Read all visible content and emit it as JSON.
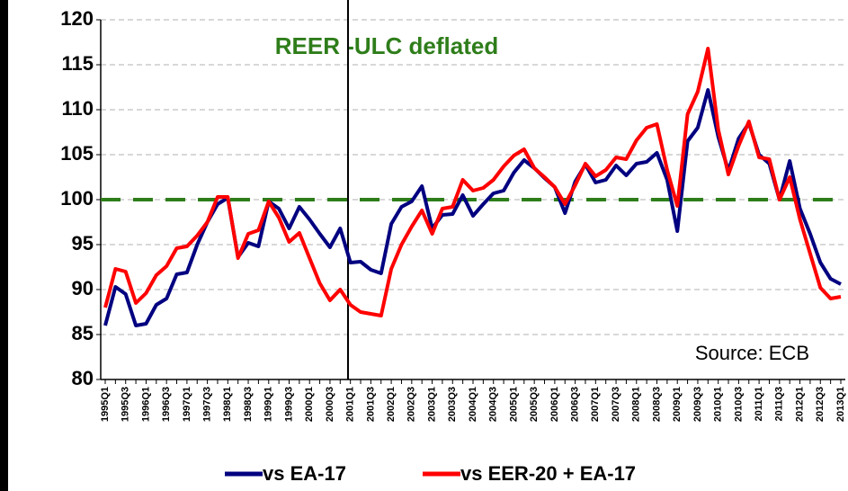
{
  "chart_data": {
    "type": "line",
    "title": "REER -ULC deflated",
    "annotation": "Source: ECB",
    "categories": [
      "1995Q1",
      null,
      "1995Q3",
      null,
      "1996Q1",
      null,
      "1996Q3",
      null,
      "1997Q1",
      null,
      "1997Q3",
      null,
      "1998Q1",
      null,
      "1998Q3",
      null,
      "1999Q1",
      null,
      "1999Q3",
      null,
      "2000Q1",
      null,
      "2000Q3",
      null,
      "2001Q1",
      null,
      "2001Q3",
      null,
      "2002Q1",
      null,
      "2002Q3",
      null,
      "2003Q1",
      null,
      "2003Q3",
      null,
      "2004Q1",
      null,
      "2004Q3",
      null,
      "2005Q1",
      null,
      "2005Q3",
      null,
      "2006Q1",
      null,
      "2006Q3",
      null,
      "2007Q1",
      null,
      "2007Q3",
      null,
      "2008Q1",
      null,
      "2008Q3",
      null,
      "2009Q1",
      null,
      "2009Q3",
      null,
      "2010Q1",
      null,
      "2010Q3",
      null,
      "2011Q1",
      null,
      "2011Q3",
      null,
      "2012Q1",
      null,
      "2012Q3",
      null,
      "2013Q1"
    ],
    "series": [
      {
        "name": "vs EA-17",
        "color": "#000080",
        "values": [
          86,
          90.3,
          89.5,
          86,
          86.2,
          88.3,
          89,
          91.7,
          91.9,
          95,
          97.5,
          99.5,
          100.2,
          93.6,
          95.2,
          94.8,
          99.8,
          99,
          96.8,
          99.2,
          97.8,
          96.2,
          94.7,
          96.8,
          93,
          93.1,
          92.2,
          91.8,
          97.3,
          99.2,
          99.8,
          101.5,
          96.8,
          98.3,
          98.4,
          100.5,
          98.2,
          99.5,
          100.7,
          101,
          103,
          104.4,
          103.5,
          102.4,
          101.4,
          98.5,
          102,
          103.9,
          101.9,
          102.2,
          103.8,
          102.7,
          104,
          104.2,
          105.2,
          102.2,
          96.5,
          106.5,
          108,
          112.2,
          107,
          103.2,
          106.8,
          108.5,
          105,
          104,
          100,
          104.3,
          99,
          96.2,
          93,
          91.2,
          90.6
        ]
      },
      {
        "name": "vs EER-20 + EA-17",
        "color": "#ff0000",
        "values": [
          88,
          92.3,
          92,
          88.5,
          89.6,
          91.6,
          92.6,
          94.6,
          94.8,
          96,
          97.5,
          100.3,
          100.3,
          93.5,
          96.2,
          96.6,
          99.8,
          98,
          95.3,
          96.3,
          93.5,
          90.7,
          88.8,
          90,
          88.3,
          87.5,
          87.3,
          87.1,
          92.3,
          95,
          97,
          98.8,
          96.2,
          99,
          99.2,
          102.2,
          101,
          101.3,
          102.2,
          103.7,
          104.9,
          105.6,
          103.5,
          102.5,
          101.4,
          99.5,
          101.6,
          104,
          102.6,
          103.3,
          104.7,
          104.5,
          106.6,
          108,
          108.4,
          103.3,
          99.3,
          109.5,
          112,
          116.8,
          107.8,
          102.8,
          106,
          108.7,
          104.7,
          104.5,
          100,
          102.5,
          97.8,
          94,
          90.2,
          89,
          89.2
        ]
      }
    ],
    "reference_line": {
      "value": 100,
      "color": "#2e7d1a"
    },
    "ylim": [
      80,
      120
    ],
    "yticks": [
      80,
      85,
      90,
      95,
      100,
      105,
      110,
      115,
      120
    ],
    "grid": true,
    "legend": "bottom"
  }
}
